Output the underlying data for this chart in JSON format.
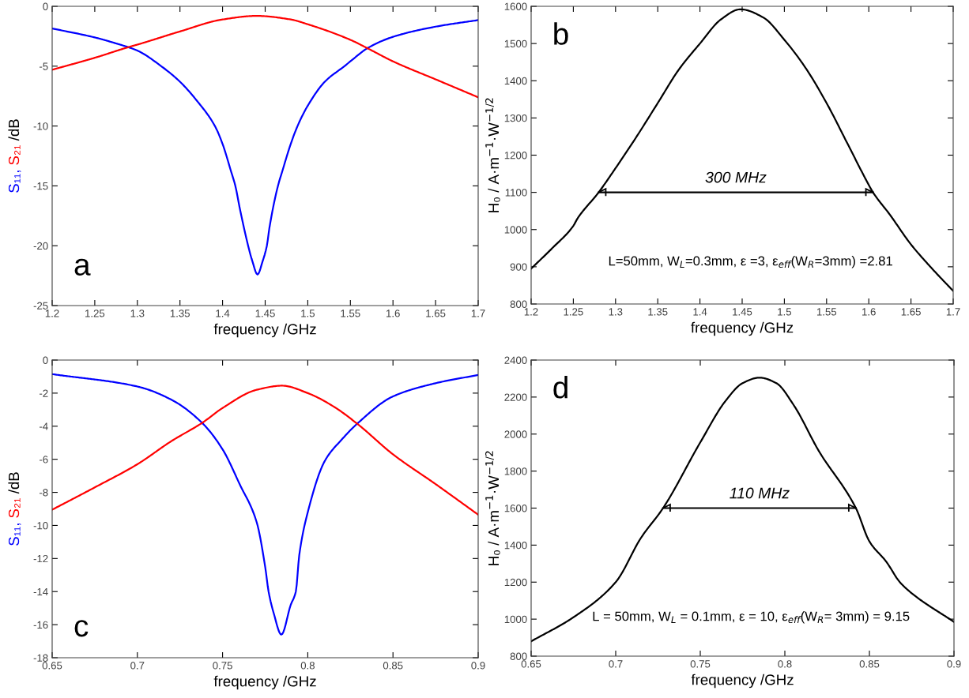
{
  "chart_data": [
    {
      "type": "line",
      "xlabel": "frequency /GHz",
      "ylabel": "/dB",
      "xlim": [
        1.2,
        1.7
      ],
      "ylim": [
        -25,
        0
      ],
      "xticks": [
        1.2,
        1.25,
        1.3,
        1.35,
        1.4,
        1.45,
        1.5,
        1.55,
        1.6,
        1.65,
        1.7
      ],
      "yticks": [
        -25,
        -20,
        -15,
        -10,
        -5,
        0
      ],
      "grid": false,
      "annotations": [
        "a"
      ],
      "series": [
        {
          "name": "S₁₁,",
          "color": "#0000ff",
          "x": [
            1.2,
            1.25,
            1.275,
            1.3,
            1.328,
            1.35,
            1.37,
            1.391,
            1.4,
            1.41,
            1.415,
            1.42,
            1.43,
            1.435,
            1.441,
            1.447,
            1.452,
            1.455,
            1.465,
            1.47,
            1.48,
            1.488,
            1.5,
            1.52,
            1.543,
            1.55,
            1.57,
            1.6,
            1.65,
            1.7
          ],
          "values": [
            -1.85,
            -2.6,
            -3.1,
            -3.7,
            -5,
            -6.3,
            -7.9,
            -10,
            -11.5,
            -13.8,
            -15,
            -16.8,
            -20,
            -21.3,
            -22.4,
            -21.3,
            -20,
            -18.5,
            -15,
            -13.8,
            -11.5,
            -10,
            -8.3,
            -6.3,
            -5,
            -4.6,
            -3.5,
            -2.55,
            -1.7,
            -1.15
          ]
        },
        {
          "name": "S₂₁",
          "color": "#ff0000",
          "x": [
            1.2,
            1.25,
            1.29,
            1.3,
            1.35,
            1.4,
            1.44,
            1.48,
            1.5,
            1.55,
            1.57,
            1.6,
            1.65,
            1.7
          ],
          "values": [
            -5.3,
            -4.3,
            -3.4,
            -3.2,
            -2.1,
            -1.1,
            -0.8,
            -1.1,
            -1.5,
            -2.8,
            -3.5,
            -4.6,
            -6.1,
            -7.6
          ]
        }
      ]
    },
    {
      "type": "line",
      "xlabel": "frequency /GHz",
      "ylabel": "H₀ / A·m$^{−1}$·W$^{−1/2}$",
      "xlim": [
        1.2,
        1.7
      ],
      "ylim": [
        800,
        1600
      ],
      "xticks": [
        1.2,
        1.25,
        1.3,
        1.35,
        1.4,
        1.45,
        1.5,
        1.55,
        1.6,
        1.65,
        1.7
      ],
      "yticks": [
        800,
        900,
        1000,
        1100,
        1200,
        1300,
        1400,
        1500,
        1600
      ],
      "grid": false,
      "annotations": [
        "b",
        "L=50mm, W$_{L}$=0.3mm, ε =3, ε$_{eff}$(W$_{R}$=3mm) =2.81",
        {
          "text": "300 MHz",
          "x": 1.4425,
          "y": 1100
        }
      ],
      "series": [
        {
          "color": "#000000",
          "x": [
            1.28,
            1.605
          ],
          "values": [
            1100,
            1100
          ]
        },
        {
          "color": "#000000",
          "x": [
            1.2,
            1.225,
            1.25,
            1.255,
            1.28,
            1.3,
            1.325,
            1.35,
            1.375,
            1.4,
            1.425,
            1.448,
            1.475,
            1.5,
            1.525,
            1.55,
            1.575,
            1.6,
            1.605,
            1.625,
            1.65,
            1.675,
            1.7
          ],
          "values": [
            895,
            950,
            1010,
            1030,
            1100,
            1165,
            1250,
            1340,
            1430,
            1500,
            1565,
            1592,
            1570,
            1510,
            1435,
            1340,
            1230,
            1120,
            1100,
            1040,
            960,
            895,
            835
          ]
        }
      ]
    },
    {
      "type": "line",
      "xlabel": "frequency /GHz",
      "ylabel": "/dB",
      "xlim": [
        0.65,
        0.9
      ],
      "ylim": [
        -18,
        0
      ],
      "xticks": [
        0.65,
        0.7,
        0.75,
        0.8,
        0.85,
        0.9
      ],
      "yticks": [
        -18,
        -16,
        -14,
        -12,
        -10,
        -8,
        -6,
        -4,
        -2,
        0
      ],
      "grid": false,
      "annotations": [
        "c"
      ],
      "series": [
        {
          "name": "S₁₁,",
          "color": "#0000ff",
          "x": [
            0.65,
            0.7,
            0.72,
            0.738,
            0.75,
            0.76,
            0.77,
            0.775,
            0.777,
            0.78,
            0.7845,
            0.79,
            0.793,
            0.795,
            0.8,
            0.81,
            0.82,
            0.829,
            0.85,
            0.875,
            0.9
          ],
          "values": [
            -0.85,
            -1.6,
            -2.4,
            -3.8,
            -5.4,
            -7.5,
            -9.8,
            -12.5,
            -14,
            -15.3,
            -16.6,
            -14.8,
            -14,
            -11.8,
            -9.2,
            -6.1,
            -4.8,
            -3.85,
            -2.2,
            -1.4,
            -0.9
          ]
        },
        {
          "name": "S₂₁",
          "color": "#ff0000",
          "x": [
            0.65,
            0.675,
            0.7,
            0.72,
            0.738,
            0.75,
            0.77,
            0.785,
            0.8,
            0.815,
            0.829,
            0.85,
            0.875,
            0.9
          ],
          "values": [
            -9.05,
            -7.7,
            -6.3,
            -4.9,
            -3.8,
            -2.9,
            -1.8,
            -1.55,
            -2.0,
            -2.8,
            -3.85,
            -5.7,
            -7.5,
            -9.35
          ]
        }
      ]
    },
    {
      "type": "line",
      "xlabel": "frequency /GHz",
      "ylabel": "H₀ / A·m$^{−1}$·W$^{−1/2}$",
      "xlim": [
        0.65,
        0.9
      ],
      "ylim": [
        800,
        2400
      ],
      "xticks": [
        0.65,
        0.7,
        0.75,
        0.8,
        0.85,
        0.9
      ],
      "yticks": [
        800,
        1000,
        1200,
        1400,
        1600,
        1800,
        2000,
        2200,
        2400
      ],
      "grid": false,
      "annotations": [
        "d",
        "L = 50mm, W$_{L}$ = 0.1mm, ε = 10, ε$_{eff}$(W$_{R}$= 3mm) = 9.15",
        {
          "text": "110 MHz",
          "x": 0.785,
          "y": 1600
        }
      ],
      "series": [
        {
          "color": "#000000",
          "x": [
            0.728,
            0.842
          ],
          "values": [
            1600,
            1600
          ]
        },
        {
          "color": "#000000",
          "x": [
            0.65,
            0.675,
            0.7,
            0.715,
            0.728,
            0.75,
            0.765,
            0.775,
            0.785,
            0.795,
            0.805,
            0.82,
            0.842,
            0.85,
            0.86,
            0.868,
            0.875,
            0.9
          ],
          "values": [
            880,
            1010,
            1200,
            1440,
            1600,
            1955,
            2180,
            2275,
            2305,
            2275,
            2160,
            1910,
            1600,
            1420,
            1310,
            1200,
            1140,
            985
          ]
        }
      ]
    }
  ]
}
